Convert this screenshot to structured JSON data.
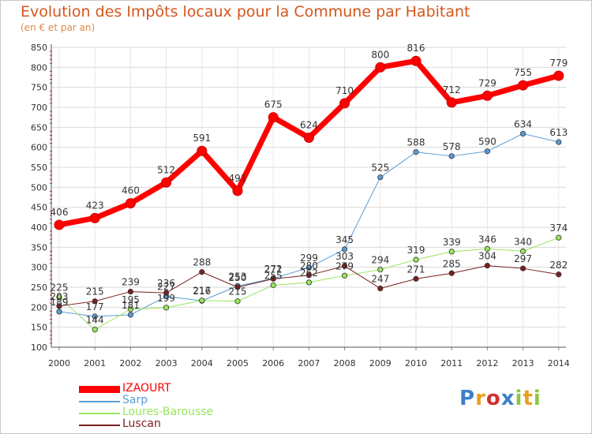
{
  "title": "Evolution des Impôts locaux pour la Commune par Habitant",
  "subtitle": "(en € et par an)",
  "logo_text": "Proxiti",
  "logo_colors": [
    "#3f7fc8",
    "#e8a020",
    "#d03030",
    "#3f7fc8",
    "#8cc63f",
    "#e8a020",
    "#8cc63f"
  ],
  "chart_data": {
    "type": "line",
    "categories": [
      "2000",
      "2001",
      "2002",
      "2003",
      "2004",
      "2005",
      "2006",
      "2007",
      "2008",
      "2009",
      "2010",
      "2011",
      "2012",
      "2013",
      "2014"
    ],
    "ylim": [
      100,
      850
    ],
    "y_ticks": [
      100,
      150,
      200,
      250,
      300,
      350,
      400,
      450,
      500,
      550,
      600,
      650,
      700,
      750,
      800,
      850
    ],
    "grid": true,
    "legend_position": "bottom-left",
    "xlabel": "",
    "ylabel": "",
    "series": [
      {
        "name": "Sarp",
        "color": "#5b9bd5",
        "line_width": 1,
        "values": [
          189,
          177,
          181,
          227,
          216,
          253,
          272,
          299,
          345,
          525,
          588,
          578,
          590,
          634,
          613
        ]
      },
      {
        "name": "Loures-Barousse",
        "color": "#99e65c",
        "line_width": 1,
        "values": [
          225,
          144,
          195,
          199,
          217,
          215,
          255,
          262,
          279,
          294,
          319,
          339,
          346,
          340,
          374
        ]
      },
      {
        "name": "Luscan",
        "color": "#7a1f1f",
        "line_width": 1,
        "values": [
          203,
          215,
          239,
          236,
          288,
          250,
          271,
          280,
          303,
          247,
          271,
          285,
          304,
          297,
          282
        ]
      },
      {
        "name": "IZAOURT",
        "color": "#ff0000",
        "line_width": 7,
        "values": [
          406,
          423,
          460,
          512,
          591,
          491,
          675,
          624,
          710,
          800,
          816,
          712,
          729,
          755,
          779
        ]
      }
    ],
    "legend_order": [
      "IZAOURT",
      "Sarp",
      "Loures-Barousse",
      "Luscan"
    ]
  }
}
